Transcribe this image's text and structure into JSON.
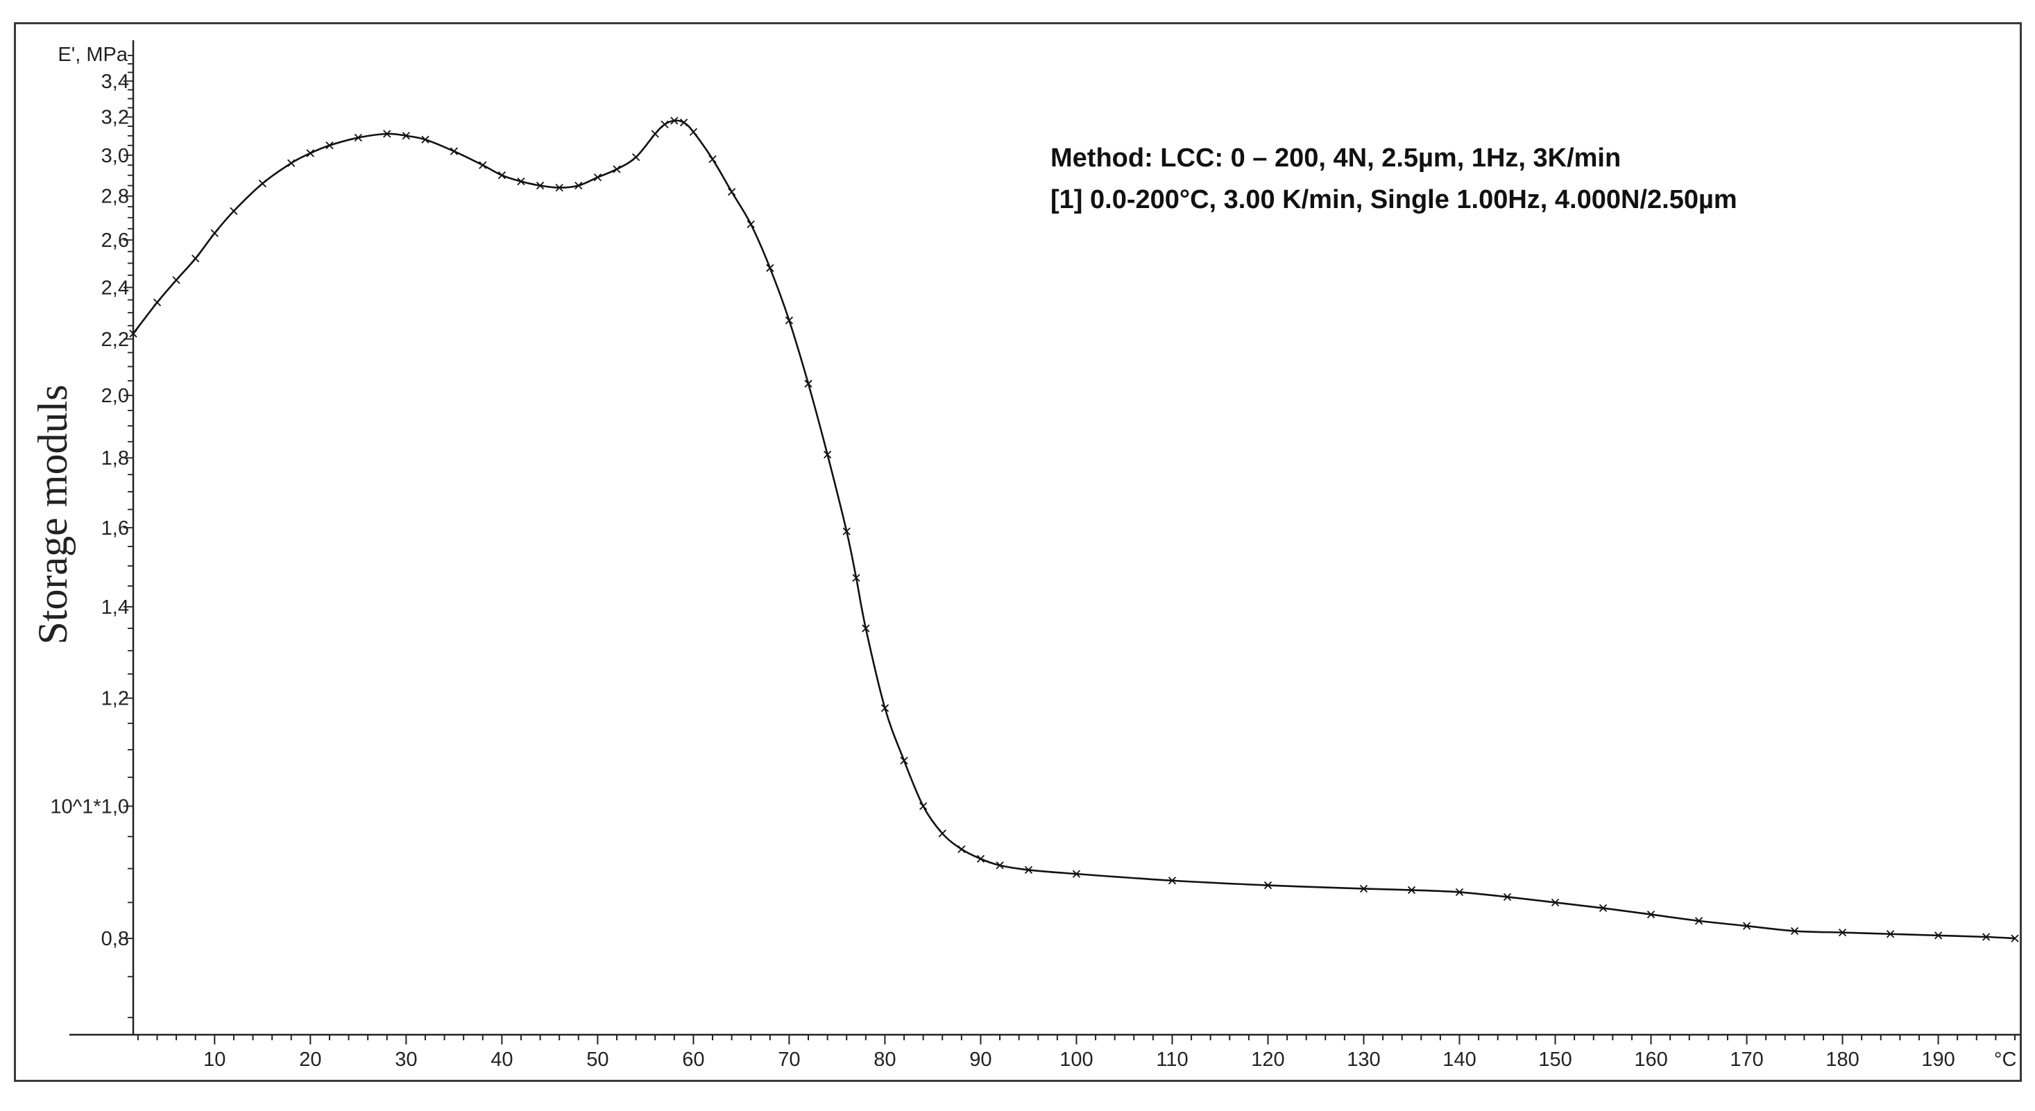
{
  "chart_data": {
    "type": "line",
    "ylabel": "Storage moduls",
    "yunit": "E', MPa",
    "xunit": "°C",
    "yscale": "log",
    "annotation_lines": [
      "Method: LCC: 0 – 200, 4N, 2.5µm, 1Hz, 3K/min",
      "[1] 0.0-200°C, 3.00 K/min, Single 1.00Hz, 4.000N/2.50µm"
    ],
    "xlim": [
      1.5,
      198
    ],
    "ylim": [
      6.8,
      36
    ],
    "xticks": [
      {
        "value": 10,
        "label": "10"
      },
      {
        "value": 20,
        "label": "20"
      },
      {
        "value": 30,
        "label": "30"
      },
      {
        "value": 40,
        "label": "40"
      },
      {
        "value": 50,
        "label": "50"
      },
      {
        "value": 60,
        "label": "60"
      },
      {
        "value": 70,
        "label": "70"
      },
      {
        "value": 80,
        "label": "80"
      },
      {
        "value": 90,
        "label": "90"
      },
      {
        "value": 100,
        "label": "100"
      },
      {
        "value": 110,
        "label": "110"
      },
      {
        "value": 120,
        "label": "120"
      },
      {
        "value": 130,
        "label": "130"
      },
      {
        "value": 140,
        "label": "140"
      },
      {
        "value": 150,
        "label": "150"
      },
      {
        "value": 160,
        "label": "160"
      },
      {
        "value": 170,
        "label": "170"
      },
      {
        "value": 180,
        "label": "180"
      },
      {
        "value": 190,
        "label": "190"
      }
    ],
    "yticks": [
      {
        "value": 8,
        "label": "0,8"
      },
      {
        "value": 10,
        "label": "10^1*1,0"
      },
      {
        "value": 12,
        "label": "1,2"
      },
      {
        "value": 14,
        "label": "1,4"
      },
      {
        "value": 16,
        "label": "1,6"
      },
      {
        "value": 18,
        "label": "1,8"
      },
      {
        "value": 20,
        "label": "2,0"
      },
      {
        "value": 22,
        "label": "2,2"
      },
      {
        "value": 24,
        "label": "2,4"
      },
      {
        "value": 26,
        "label": "2,6"
      },
      {
        "value": 28,
        "label": "2,8"
      },
      {
        "value": 30,
        "label": "3,0"
      },
      {
        "value": 32,
        "label": "3,2"
      },
      {
        "value": 34,
        "label": "3,4"
      }
    ],
    "series": [
      {
        "x": [
          1.5,
          4,
          6,
          8,
          10,
          12,
          15,
          18,
          20,
          22,
          25,
          28,
          30,
          32,
          35,
          38,
          40,
          42,
          44,
          46,
          48,
          50,
          52,
          54,
          56,
          57,
          58,
          59,
          60,
          62,
          64,
          66,
          68,
          70,
          72,
          74,
          76,
          77,
          78,
          80,
          82,
          84,
          86,
          88,
          90,
          92,
          95,
          100,
          110,
          120,
          130,
          135,
          140,
          145,
          150,
          155,
          160,
          165,
          170,
          175,
          180,
          185,
          190,
          195,
          198
        ],
        "y": [
          22.2,
          23.4,
          24.3,
          25.2,
          26.3,
          27.3,
          28.6,
          29.6,
          30.1,
          30.5,
          30.9,
          31.1,
          31.0,
          30.8,
          30.2,
          29.5,
          29.0,
          28.7,
          28.5,
          28.4,
          28.5,
          28.9,
          29.3,
          29.9,
          31.1,
          31.6,
          31.8,
          31.7,
          31.2,
          29.8,
          28.2,
          26.7,
          24.8,
          22.7,
          20.4,
          18.1,
          15.9,
          14.7,
          13.5,
          11.8,
          10.8,
          10.0,
          9.55,
          9.3,
          9.15,
          9.05,
          8.98,
          8.92,
          8.82,
          8.75,
          8.7,
          8.68,
          8.65,
          8.58,
          8.5,
          8.42,
          8.33,
          8.24,
          8.17,
          8.1,
          8.08,
          8.06,
          8.04,
          8.02,
          8.0
        ]
      }
    ],
    "grid": false
  }
}
